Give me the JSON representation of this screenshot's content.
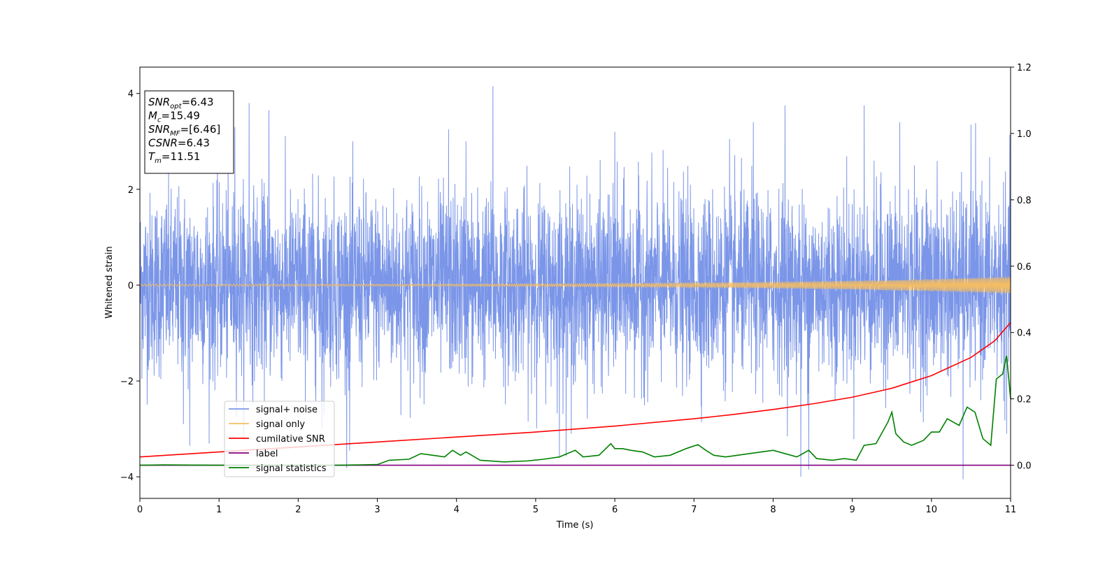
{
  "chart_data": {
    "type": "line",
    "xlabel": "Time (s)",
    "ylabel": "Whitened strain",
    "xlim": [
      0,
      11
    ],
    "ylim_left": [
      -4.45,
      4.55
    ],
    "ylim_right": [
      -0.1,
      1.2
    ],
    "xticks": [
      "0",
      "1",
      "2",
      "3",
      "4",
      "5",
      "6",
      "7",
      "8",
      "9",
      "10",
      "11"
    ],
    "yticks_left": [
      "−4",
      "−2",
      "0",
      "2",
      "4"
    ],
    "yticks_right": [
      "0.0",
      "0.2",
      "0.4",
      "0.6",
      "0.8",
      "1.0",
      "1.2"
    ],
    "grid": false,
    "legend_position": "lower-left",
    "annotation": [
      {
        "sym": "SNR",
        "sub": "opt",
        "rest": "=6.43"
      },
      {
        "sym": "M",
        "sub": "c",
        "rest": "=15.49"
      },
      {
        "sym": "SNR",
        "sub": "MF",
        "rest": "=[6.46]"
      },
      {
        "sym": "CSNR",
        "sub": "",
        "rest": "=6.43"
      },
      {
        "sym": "T",
        "sub": "m",
        "rest": "=11.51"
      }
    ],
    "series": [
      {
        "name": "signal+ noise",
        "color": "#7b96e8",
        "axis": "left",
        "description": "whitened strain, noise amplitude ~1",
        "peaks": [
          {
            "x": 0.55,
            "y": -2.9
          },
          {
            "x": 0.63,
            "y": -3.35
          },
          {
            "x": 1.2,
            "y": 3.3
          },
          {
            "x": 1.38,
            "y": 3.8
          },
          {
            "x": 1.63,
            "y": 3.65
          },
          {
            "x": 2.3,
            "y": -3.0
          },
          {
            "x": 2.65,
            "y": -3.45
          },
          {
            "x": 3.9,
            "y": 3.25
          },
          {
            "x": 4.12,
            "y": 3.0
          },
          {
            "x": 4.46,
            "y": 4.15
          },
          {
            "x": 5.3,
            "y": -3.6
          },
          {
            "x": 5.45,
            "y": -3.1
          },
          {
            "x": 6.0,
            "y": 3.2
          },
          {
            "x": 7.45,
            "y": 3.05
          },
          {
            "x": 7.75,
            "y": 3.4
          },
          {
            "x": 8.15,
            "y": 3.75
          },
          {
            "x": 8.35,
            "y": -4.0
          },
          {
            "x": 8.45,
            "y": -3.85
          },
          {
            "x": 9.15,
            "y": 3.75
          },
          {
            "x": 9.6,
            "y": 3.4
          },
          {
            "x": 10.4,
            "y": -4.05
          },
          {
            "x": 10.5,
            "y": 3.35
          },
          {
            "x": 10.95,
            "y": -3.1
          }
        ]
      },
      {
        "name": "signal only",
        "color": "#f5bd62",
        "axis": "left",
        "chirp": {
          "f0": 20,
          "f1": 60,
          "amp_start": 0.02,
          "amp_end": 0.18
        }
      },
      {
        "name": "cumilative SNR",
        "color": "#ff0000",
        "axis": "right",
        "x": [
          0,
          1,
          2,
          3,
          4,
          5,
          6,
          7,
          7.5,
          8,
          8.5,
          9,
          9.5,
          10,
          10.5,
          10.8,
          11
        ],
        "y": [
          0.025,
          0.04,
          0.055,
          0.07,
          0.085,
          0.1,
          0.118,
          0.14,
          0.153,
          0.168,
          0.185,
          0.205,
          0.232,
          0.27,
          0.325,
          0.375,
          0.43
        ]
      },
      {
        "name": "label",
        "color": "#800080",
        "axis": "right",
        "x": [
          0,
          11
        ],
        "y": [
          0.0,
          0.0
        ]
      },
      {
        "name": "signal statistics",
        "color": "#008000",
        "axis": "right",
        "x": [
          0,
          0.3,
          1,
          2,
          2.5,
          3,
          3.15,
          3.4,
          3.55,
          3.7,
          3.85,
          3.95,
          4.05,
          4.12,
          4.3,
          4.6,
          4.9,
          5.1,
          5.3,
          5.5,
          5.6,
          5.8,
          5.95,
          6.0,
          6.1,
          6.2,
          6.35,
          6.5,
          6.7,
          6.9,
          7.05,
          7.15,
          7.25,
          7.4,
          7.55,
          7.7,
          7.85,
          8.0,
          8.15,
          8.3,
          8.45,
          8.55,
          8.75,
          8.9,
          9.05,
          9.15,
          9.3,
          9.45,
          9.5,
          9.55,
          9.65,
          9.75,
          9.9,
          10.0,
          10.1,
          10.2,
          10.35,
          10.45,
          10.55,
          10.65,
          10.75,
          10.82,
          10.9,
          10.95,
          11.0
        ],
        "y": [
          0.0,
          0.001,
          0.0,
          0.0,
          0.0,
          0.002,
          0.015,
          0.018,
          0.035,
          0.03,
          0.025,
          0.045,
          0.03,
          0.04,
          0.015,
          0.01,
          0.013,
          0.018,
          0.025,
          0.045,
          0.025,
          0.03,
          0.065,
          0.05,
          0.05,
          0.045,
          0.04,
          0.025,
          0.03,
          0.05,
          0.062,
          0.045,
          0.03,
          0.025,
          0.03,
          0.035,
          0.04,
          0.045,
          0.035,
          0.025,
          0.045,
          0.02,
          0.015,
          0.02,
          0.015,
          0.06,
          0.065,
          0.13,
          0.16,
          0.095,
          0.07,
          0.06,
          0.075,
          0.1,
          0.1,
          0.14,
          0.12,
          0.175,
          0.16,
          0.08,
          0.06,
          0.26,
          0.275,
          0.33,
          0.2
        ]
      }
    ]
  }
}
